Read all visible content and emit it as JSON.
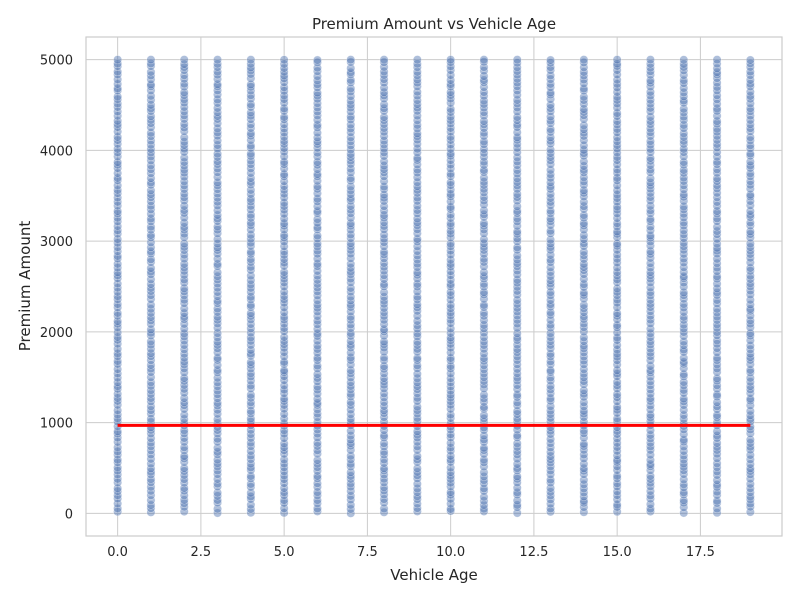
{
  "chart_data": {
    "type": "scatter",
    "title": "Premium Amount vs Vehicle Age",
    "xlabel": "Vehicle Age",
    "ylabel": "Premium Amount",
    "xlim": [
      -0.95,
      19.95
    ],
    "ylim": [
      -250,
      5250
    ],
    "xticks": [
      0.0,
      2.5,
      5.0,
      7.5,
      10.0,
      12.5,
      15.0,
      17.5
    ],
    "xtick_labels": [
      "0.0",
      "2.5",
      "5.0",
      "7.5",
      "10.0",
      "12.5",
      "15.0",
      "17.5"
    ],
    "yticks": [
      0,
      1000,
      2000,
      3000,
      4000,
      5000
    ],
    "ytick_labels": [
      "0",
      "1000",
      "2000",
      "3000",
      "4000",
      "5000"
    ],
    "grid": true,
    "series": [
      {
        "kind": "scatter",
        "color": "#4c72b0",
        "x_values": [
          0,
          1,
          2,
          3,
          4,
          5,
          6,
          7,
          8,
          9,
          10,
          11,
          12,
          13,
          14,
          15,
          16,
          17,
          18,
          19
        ],
        "y_range": [
          0,
          5000
        ]
      },
      {
        "kind": "line",
        "color": "#ff0000",
        "x": [
          0,
          19
        ],
        "y": [
          970,
          970
        ]
      }
    ]
  }
}
